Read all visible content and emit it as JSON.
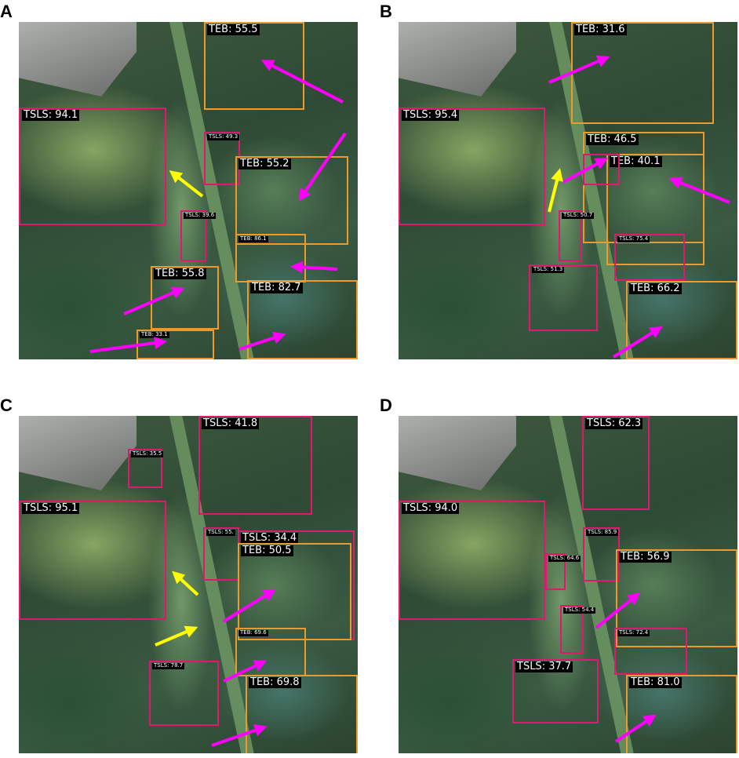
{
  "panels": [
    {
      "letter": "A",
      "boxes": [
        {
          "label": "TEB: 55.5",
          "cls": "TEB"
        },
        {
          "label": "TSLS: 94.1",
          "cls": "TSLS"
        },
        {
          "label": "TSLS: 49.3",
          "cls": "TSLS"
        },
        {
          "label": "TEB: 55.2",
          "cls": "TEB"
        },
        {
          "label": "TSLS: 39.6",
          "cls": "TSLS"
        },
        {
          "label": "TEB: 86.1",
          "cls": "TEB"
        },
        {
          "label": "TEB: 55.8",
          "cls": "TEB"
        },
        {
          "label": "TEB: 82.7",
          "cls": "TEB"
        },
        {
          "label": "TEB: 33.1",
          "cls": "TEB"
        }
      ]
    },
    {
      "letter": "B",
      "boxes": [
        {
          "label": "TEB: 31.6",
          "cls": "TEB"
        },
        {
          "label": "TSLS: 95.4",
          "cls": "TSLS"
        },
        {
          "label": "TEB: 46.5",
          "cls": "TEB"
        },
        {
          "label": "TEB: 40.1",
          "cls": "TEB"
        },
        {
          "label": "",
          "cls": "TSLS"
        },
        {
          "label": "TSLS: 50.7",
          "cls": "TSLS"
        },
        {
          "label": "TSLS: 75.4",
          "cls": "TSLS"
        },
        {
          "label": "TSLS: 51.3",
          "cls": "TSLS"
        },
        {
          "label": "TEB: 66.2",
          "cls": "TEB"
        }
      ]
    },
    {
      "letter": "C",
      "boxes": [
        {
          "label": "TSLS: 41.8",
          "cls": "TSLS"
        },
        {
          "label": "TSLS: 35.5",
          "cls": "TSLS"
        },
        {
          "label": "TSLS: 95.1",
          "cls": "TSLS"
        },
        {
          "label": "TSLS: 55.",
          "cls": "TSLS"
        },
        {
          "label": "TSLS: 34.4",
          "cls": "TSLS"
        },
        {
          "label": "TEB: 50.5",
          "cls": "TEB"
        },
        {
          "label": "TEB: 69.6",
          "cls": "TEB"
        },
        {
          "label": "TSLS: 78.7",
          "cls": "TSLS"
        },
        {
          "label": "TEB: 69.8",
          "cls": "TEB"
        }
      ]
    },
    {
      "letter": "D",
      "boxes": [
        {
          "label": "TSLS: 62.3",
          "cls": "TSLS"
        },
        {
          "label": "TSLS: 94.0",
          "cls": "TSLS"
        },
        {
          "label": "TSLS: 85.9",
          "cls": "TSLS"
        },
        {
          "label": "TSLS: 64.6",
          "cls": "TSLS"
        },
        {
          "label": "TEB: 56.9",
          "cls": "TEB"
        },
        {
          "label": "TSLS: 54.4",
          "cls": "TSLS"
        },
        {
          "label": "TSLS: 72.4",
          "cls": "TSLS"
        },
        {
          "label": "TSLS: 37.7",
          "cls": "TSLS"
        },
        {
          "label": "TEB: 81.0",
          "cls": "TEB"
        }
      ]
    }
  ],
  "colors": {
    "TSLS": "#e0186f",
    "TEB": "#ee9a2a",
    "arrow_magenta": "#ff00ff",
    "arrow_yellow": "#ffff00"
  }
}
